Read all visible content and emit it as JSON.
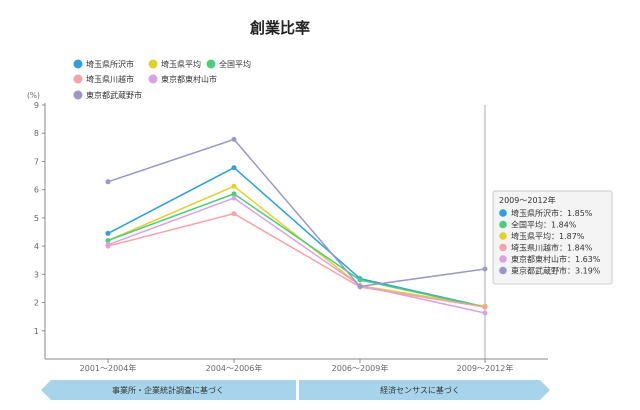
{
  "chart_data": {
    "type": "line",
    "title": "創業比率",
    "ylabel": "(%)",
    "xlabel": "",
    "ylim": [
      0,
      9
    ],
    "yticks": [
      1,
      2,
      3,
      4,
      5,
      6,
      7,
      8,
      9
    ],
    "categories": [
      "2001～2004年",
      "2004～2006年",
      "2006～2009年",
      "2009～2012年"
    ],
    "grid": false,
    "legend_position": "top-left",
    "series": [
      {
        "name": "埼玉県所沢市",
        "color": "#2f9fd6",
        "values": [
          4.45,
          6.78,
          2.85,
          1.85
        ]
      },
      {
        "name": "埼玉県平均",
        "color": "#e2d02c",
        "values": [
          4.2,
          6.12,
          2.6,
          1.87
        ]
      },
      {
        "name": "全国平均",
        "color": "#4ecb7c",
        "values": [
          4.2,
          5.85,
          2.8,
          1.84
        ]
      },
      {
        "name": "埼玉県川越市",
        "color": "#f4a3a8",
        "values": [
          4.0,
          5.15,
          2.55,
          1.84
        ]
      },
      {
        "name": "東京都東村山市",
        "color": "#d9a3e0",
        "values": [
          4.05,
          5.7,
          2.6,
          1.63
        ]
      },
      {
        "name": "東京都武蔵野市",
        "color": "#9a99c6",
        "values": [
          6.28,
          7.78,
          2.57,
          3.19
        ]
      }
    ],
    "tooltip": {
      "title": "2009～2012年",
      "items": [
        {
          "label": "埼玉県所沢市：1.85%",
          "color": "#2f9fd6"
        },
        {
          "label": "全国平均：1.84%",
          "color": "#4ecb7c"
        },
        {
          "label": "埼玉県平均：1.87%",
          "color": "#e2d02c"
        },
        {
          "label": "埼玉県川越市：1.84%",
          "color": "#f4a3a8"
        },
        {
          "label": "東京都東村山市：1.63%",
          "color": "#d9a3e0"
        },
        {
          "label": "東京都武蔵野市：3.19%",
          "color": "#9a99c6"
        }
      ]
    },
    "source_arrows": [
      {
        "label": "事業所・企業統計調査に基づく",
        "color": "#a7d4ea"
      },
      {
        "label": "経済センサスに基づく",
        "color": "#a7d4ea"
      }
    ]
  }
}
